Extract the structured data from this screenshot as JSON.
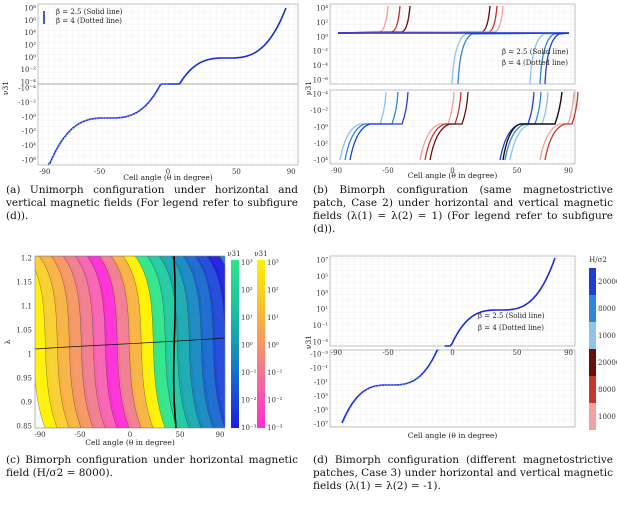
{
  "captions": {
    "a": "(a) Unimorph configuration under horizontal and vertical magnetic fields (For legend refer to subfigure (d)).",
    "b": "(b) Bimorph configuration (same magnetostrictive patch, Case 2) under horizontal and vertical magnetic fields (λ(1) = λ(2) = 1) (For legend refer to subfigure (d)).",
    "c": "(c) Bimorph configuration under horizontal magnetic field (H/σ2 = 8000).",
    "d": "(d) Bimorph configuration (different magnetostrictive patches, Case 3) under horizontal and vertical magnetic fields (λ(1) = λ(2) = -1)."
  },
  "legend": {
    "solid": "β = 2.5 (Solid line)",
    "dotted": "β = 4 (Dotted line)"
  },
  "colorbar_d": {
    "title": "H/σ2",
    "labels": [
      "20000",
      "8000",
      "1000",
      "20000",
      "8000",
      "1000"
    ],
    "colors": [
      "#1f3fd0",
      "#2f86d8",
      "#8fc3ea",
      "#6a0d0d",
      "#c0392b",
      "#f2a0a0"
    ]
  },
  "colorbar_c": {
    "left_title": "ν31",
    "right_title": "ν31",
    "labels": [
      "10³",
      "10²",
      "10¹",
      "10⁰",
      "10⁻¹",
      "10⁻²",
      "10⁻³"
    ]
  },
  "chart_data": [
    {
      "type": "line",
      "id": "a",
      "xlabel": "Cell angle (θ in degree)",
      "ylabel": "ν31",
      "xticks": [
        -90,
        -50,
        0,
        50,
        90
      ],
      "upper": {
        "yticks": [
          "10⁸",
          "10⁶",
          "10⁴",
          "10²",
          "10⁰",
          "10⁻²",
          "10⁻⁴"
        ]
      },
      "lower": {
        "yticks": [
          "-10⁻⁴",
          "-10⁻²",
          "-10⁰",
          "-10²",
          "-10⁴",
          "-10⁶"
        ]
      }
    },
    {
      "type": "line",
      "id": "b",
      "xlabel": "Cell angle (θ in degree)",
      "ylabel": "ν31",
      "xticks": [
        -90,
        -50,
        0,
        50,
        90
      ],
      "upper": {
        "yticks": [
          "10⁴",
          "10²",
          "10⁰",
          "10⁻²",
          "10⁻⁴",
          "10⁻⁶"
        ]
      },
      "lower": {
        "yticks": [
          "-10⁻⁴",
          "-10⁻²",
          "-10⁰",
          "-10²",
          "-10⁴"
        ]
      }
    },
    {
      "type": "heatmap",
      "id": "c",
      "xlabel": "Cell angle (θ in degree)",
      "ylabel": "λ",
      "xticks": [
        -90,
        -50,
        0,
        50,
        90
      ],
      "yticks": [
        "1.2",
        "1.15",
        "1.1",
        "1.05",
        "1",
        "0.95",
        "0.9",
        "0.85"
      ]
    },
    {
      "type": "line",
      "id": "d",
      "xlabel": "Cell angle (θ in degree)",
      "ylabel": "ν31",
      "xticks": [
        -90,
        -50,
        0,
        50,
        90
      ],
      "upper": {
        "yticks": [
          "10⁷",
          "10⁵",
          "10³",
          "10¹",
          "10⁻¹",
          "10⁻³"
        ]
      },
      "lower": {
        "yticks": [
          "-10⁻³",
          "-10⁻¹",
          "-10¹",
          "-10³",
          "-10⁵",
          "-10⁷"
        ]
      }
    }
  ]
}
